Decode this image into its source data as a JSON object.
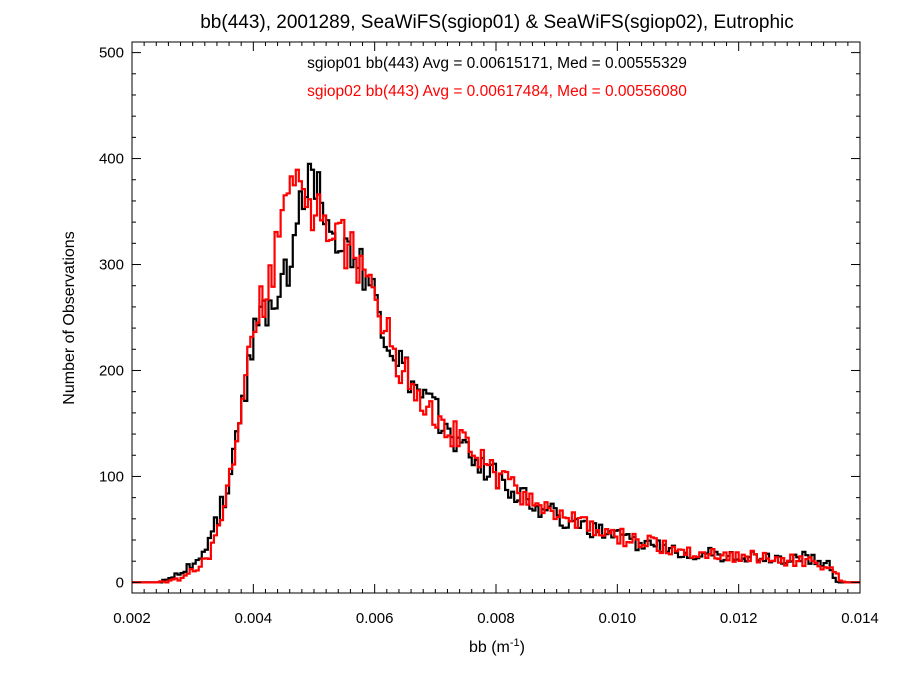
{
  "chart_data": {
    "type": "histogram",
    "title": "bb(443), 2001289, SeaWiFS(sgiop01) & SeaWiFS(sgiop02), Eutrophic",
    "xlabel": {
      "base": "bb (m",
      "sup": "-1",
      "close": ")"
    },
    "ylabel": "Number of Observations",
    "xlim": [
      0.002,
      0.014
    ],
    "ylim": [
      -10,
      510
    ],
    "x_ticks": [
      0.002,
      0.004,
      0.006,
      0.008,
      0.01,
      0.012,
      0.014
    ],
    "x_tick_labels": [
      "0.002",
      "0.004",
      "0.006",
      "0.008",
      "0.010",
      "0.012",
      "0.014"
    ],
    "y_ticks": [
      0,
      100,
      200,
      300,
      400,
      500
    ],
    "y_tick_labels": [
      "0",
      "100",
      "200",
      "300",
      "400",
      "500"
    ],
    "grid": false,
    "legend_placement": "top-center",
    "stats": [
      {
        "text": "sgiop01 bb(443) Avg = 0.00615171, Med = 0.00555329",
        "color": "#000000"
      },
      {
        "text": "sgiop02 bb(443) Avg = 0.00617484, Med = 0.00556080",
        "color": "#ff0000"
      }
    ],
    "series": [
      {
        "color": "#000000",
        "points": [
          [
            0.002,
            0
          ],
          [
            0.0023,
            0
          ],
          [
            0.0025,
            1
          ],
          [
            0.0026,
            3
          ],
          [
            0.0027,
            6
          ],
          [
            0.0028,
            9
          ],
          [
            0.0029,
            14
          ],
          [
            0.003,
            20
          ],
          [
            0.0031,
            28
          ],
          [
            0.0032,
            36
          ],
          [
            0.0033,
            45
          ],
          [
            0.0034,
            62
          ],
          [
            0.0035,
            82
          ],
          [
            0.0036,
            105
          ],
          [
            0.0037,
            130
          ],
          [
            0.0038,
            168
          ],
          [
            0.0039,
            205
          ],
          [
            0.004,
            235
          ],
          [
            0.0041,
            252
          ],
          [
            0.0042,
            258
          ],
          [
            0.0043,
            270
          ],
          [
            0.0044,
            282
          ],
          [
            0.0045,
            292
          ],
          [
            0.0046,
            305
          ],
          [
            0.0047,
            335
          ],
          [
            0.0048,
            370
          ],
          [
            0.0049,
            392
          ],
          [
            0.005,
            378
          ],
          [
            0.0051,
            360
          ],
          [
            0.0052,
            355
          ],
          [
            0.0053,
            338
          ],
          [
            0.0054,
            330
          ],
          [
            0.0055,
            318
          ],
          [
            0.0056,
            305
          ],
          [
            0.0057,
            300
          ],
          [
            0.0058,
            290
          ],
          [
            0.0059,
            278
          ],
          [
            0.006,
            262
          ],
          [
            0.0061,
            245
          ],
          [
            0.0062,
            225
          ],
          [
            0.0063,
            215
          ],
          [
            0.0064,
            205
          ],
          [
            0.0065,
            195
          ],
          [
            0.0066,
            185
          ],
          [
            0.0067,
            175
          ],
          [
            0.0068,
            170
          ],
          [
            0.0069,
            165
          ],
          [
            0.007,
            158
          ],
          [
            0.0071,
            150
          ],
          [
            0.0072,
            145
          ],
          [
            0.0073,
            138
          ],
          [
            0.0074,
            130
          ],
          [
            0.0075,
            125
          ],
          [
            0.0076,
            120
          ],
          [
            0.0077,
            115
          ],
          [
            0.0078,
            110
          ],
          [
            0.0079,
            105
          ],
          [
            0.008,
            98
          ],
          [
            0.0081,
            95
          ],
          [
            0.0082,
            90
          ],
          [
            0.0083,
            86
          ],
          [
            0.0084,
            82
          ],
          [
            0.0085,
            78
          ],
          [
            0.0086,
            74
          ],
          [
            0.0087,
            72
          ],
          [
            0.0088,
            70
          ],
          [
            0.0089,
            66
          ],
          [
            0.009,
            62
          ],
          [
            0.0091,
            60
          ],
          [
            0.0092,
            58
          ],
          [
            0.0093,
            55
          ],
          [
            0.0094,
            52
          ],
          [
            0.0095,
            50
          ],
          [
            0.0096,
            48
          ],
          [
            0.0097,
            46
          ],
          [
            0.0098,
            44
          ],
          [
            0.0099,
            43
          ],
          [
            0.01,
            42
          ],
          [
            0.0101,
            40
          ],
          [
            0.0102,
            39
          ],
          [
            0.0103,
            38
          ],
          [
            0.0104,
            36
          ],
          [
            0.0105,
            35
          ],
          [
            0.0106,
            34
          ],
          [
            0.0107,
            33
          ],
          [
            0.0108,
            32
          ],
          [
            0.0109,
            31
          ],
          [
            0.011,
            30
          ],
          [
            0.0111,
            29
          ],
          [
            0.0112,
            28
          ],
          [
            0.0113,
            28
          ],
          [
            0.0114,
            27
          ],
          [
            0.0115,
            27
          ],
          [
            0.0116,
            26
          ],
          [
            0.0117,
            26
          ],
          [
            0.0118,
            25
          ],
          [
            0.0119,
            25
          ],
          [
            0.012,
            25
          ],
          [
            0.0121,
            24
          ],
          [
            0.0122,
            24
          ],
          [
            0.0123,
            24
          ],
          [
            0.0124,
            23
          ],
          [
            0.0125,
            23
          ],
          [
            0.0126,
            23
          ],
          [
            0.0127,
            22
          ],
          [
            0.0128,
            22
          ],
          [
            0.0129,
            23
          ],
          [
            0.013,
            25
          ],
          [
            0.0131,
            24
          ],
          [
            0.0132,
            22
          ],
          [
            0.0133,
            20
          ],
          [
            0.0134,
            18
          ],
          [
            0.0135,
            14
          ],
          [
            0.0136,
            0
          ],
          [
            0.014,
            0
          ]
        ]
      },
      {
        "color": "#ff0000",
        "points": [
          [
            0.002,
            0
          ],
          [
            0.0024,
            0
          ],
          [
            0.0026,
            1
          ],
          [
            0.0027,
            2
          ],
          [
            0.0028,
            4
          ],
          [
            0.0029,
            8
          ],
          [
            0.003,
            12
          ],
          [
            0.0031,
            18
          ],
          [
            0.0032,
            24
          ],
          [
            0.0033,
            32
          ],
          [
            0.0034,
            48
          ],
          [
            0.0035,
            68
          ],
          [
            0.0036,
            95
          ],
          [
            0.0037,
            125
          ],
          [
            0.0038,
            165
          ],
          [
            0.0039,
            205
          ],
          [
            0.004,
            240
          ],
          [
            0.0041,
            262
          ],
          [
            0.0042,
            280
          ],
          [
            0.0043,
            300
          ],
          [
            0.0044,
            325
          ],
          [
            0.0045,
            345
          ],
          [
            0.0046,
            362
          ],
          [
            0.0047,
            370
          ],
          [
            0.0048,
            368
          ],
          [
            0.0049,
            360
          ],
          [
            0.005,
            352
          ],
          [
            0.0051,
            346
          ],
          [
            0.0052,
            340
          ],
          [
            0.0053,
            334
          ],
          [
            0.0054,
            326
          ],
          [
            0.0055,
            318
          ],
          [
            0.0056,
            310
          ],
          [
            0.0057,
            302
          ],
          [
            0.0058,
            292
          ],
          [
            0.0059,
            280
          ],
          [
            0.006,
            265
          ],
          [
            0.0061,
            250
          ],
          [
            0.0062,
            232
          ],
          [
            0.0063,
            218
          ],
          [
            0.0064,
            206
          ],
          [
            0.0065,
            196
          ],
          [
            0.0066,
            188
          ],
          [
            0.0067,
            180
          ],
          [
            0.0068,
            174
          ],
          [
            0.0069,
            168
          ],
          [
            0.007,
            160
          ],
          [
            0.0071,
            152
          ],
          [
            0.0072,
            146
          ],
          [
            0.0073,
            140
          ],
          [
            0.0074,
            134
          ],
          [
            0.0075,
            128
          ],
          [
            0.0076,
            122
          ],
          [
            0.0077,
            116
          ],
          [
            0.0078,
            110
          ],
          [
            0.0079,
            105
          ],
          [
            0.008,
            100
          ],
          [
            0.0081,
            96
          ],
          [
            0.0082,
            92
          ],
          [
            0.0083,
            88
          ],
          [
            0.0084,
            84
          ],
          [
            0.0085,
            80
          ],
          [
            0.0086,
            76
          ],
          [
            0.0087,
            74
          ],
          [
            0.0088,
            72
          ],
          [
            0.0089,
            68
          ],
          [
            0.009,
            64
          ],
          [
            0.0091,
            62
          ],
          [
            0.0092,
            60
          ],
          [
            0.0093,
            57
          ],
          [
            0.0094,
            54
          ],
          [
            0.0095,
            51
          ],
          [
            0.0096,
            49
          ],
          [
            0.0097,
            47
          ],
          [
            0.0098,
            45
          ],
          [
            0.0099,
            44
          ],
          [
            0.01,
            43
          ],
          [
            0.0101,
            42
          ],
          [
            0.0102,
            41
          ],
          [
            0.0103,
            40
          ],
          [
            0.0104,
            38
          ],
          [
            0.0105,
            37
          ],
          [
            0.0106,
            35
          ],
          [
            0.0107,
            34
          ],
          [
            0.0108,
            32
          ],
          [
            0.0109,
            31
          ],
          [
            0.011,
            30
          ],
          [
            0.0111,
            29
          ],
          [
            0.0112,
            29
          ],
          [
            0.0113,
            28
          ],
          [
            0.0114,
            27
          ],
          [
            0.0115,
            27
          ],
          [
            0.0116,
            26
          ],
          [
            0.0117,
            26
          ],
          [
            0.0118,
            25
          ],
          [
            0.0119,
            25
          ],
          [
            0.012,
            24
          ],
          [
            0.0121,
            24
          ],
          [
            0.0122,
            24
          ],
          [
            0.0123,
            23
          ],
          [
            0.0124,
            23
          ],
          [
            0.0125,
            22
          ],
          [
            0.0126,
            22
          ],
          [
            0.0127,
            22
          ],
          [
            0.0128,
            21
          ],
          [
            0.0129,
            21
          ],
          [
            0.013,
            20
          ],
          [
            0.0131,
            20
          ],
          [
            0.0132,
            19
          ],
          [
            0.0133,
            18
          ],
          [
            0.0134,
            16
          ],
          [
            0.0135,
            12
          ],
          [
            0.0136,
            6
          ],
          [
            0.0137,
            0
          ],
          [
            0.014,
            0
          ]
        ]
      }
    ]
  }
}
